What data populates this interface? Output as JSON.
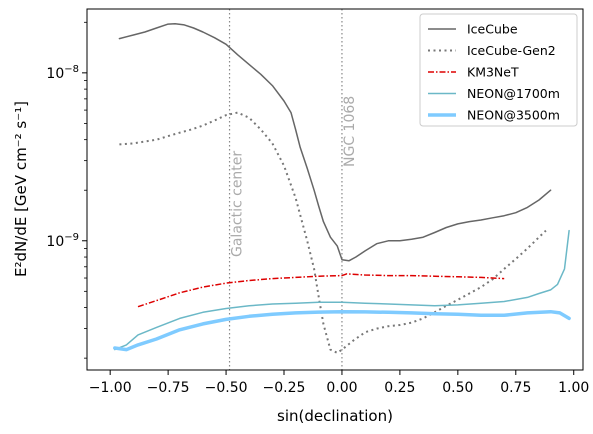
{
  "chart_data": {
    "type": "line",
    "title": "",
    "xlabel": "sin(declination)",
    "ylabel": "E²dN/dE  [GeV cm⁻² s⁻¹]",
    "xlim": [
      -1.1,
      1.04
    ],
    "ylim": [
      1.7e-10,
      2.4e-08
    ],
    "yscale": "log",
    "xticks": [
      -1.0,
      -0.75,
      -0.5,
      -0.25,
      0.0,
      0.25,
      0.5,
      0.75,
      1.0
    ],
    "xtick_labels": [
      "−1.00",
      "−0.75",
      "−0.50",
      "−0.25",
      "0.00",
      "0.25",
      "0.50",
      "0.75",
      "1.00"
    ],
    "yticks": [
      1e-09,
      1e-08
    ],
    "legend_position": "top-right",
    "grid": false,
    "annotations": [
      {
        "text": "Galactic center",
        "x": -0.485
      },
      {
        "text": "NGC 1068",
        "x": 0.0
      }
    ],
    "series": [
      {
        "name": "IceCube",
        "color": "#666666",
        "style": "solid",
        "width": 1.5,
        "x": [
          -0.96,
          -0.9,
          -0.85,
          -0.8,
          -0.75,
          -0.72,
          -0.68,
          -0.64,
          -0.6,
          -0.55,
          -0.5,
          -0.45,
          -0.4,
          -0.35,
          -0.3,
          -0.25,
          -0.22,
          -0.2,
          -0.18,
          -0.15,
          -0.12,
          -0.1,
          -0.08,
          -0.05,
          -0.02,
          0.0,
          0.03,
          0.06,
          0.1,
          0.15,
          0.2,
          0.25,
          0.3,
          0.35,
          0.4,
          0.45,
          0.5,
          0.55,
          0.6,
          0.65,
          0.7,
          0.75,
          0.8,
          0.85,
          0.9
        ],
        "y": [
          1.6e-08,
          1.68e-08,
          1.75e-08,
          1.85e-08,
          1.95e-08,
          1.96e-08,
          1.93e-08,
          1.85e-08,
          1.75e-08,
          1.62e-08,
          1.48e-08,
          1.28e-08,
          1.12e-08,
          9.8e-09,
          8.4e-09,
          6.8e-09,
          5.8e-09,
          4.6e-09,
          3.6e-09,
          2.7e-09,
          2e-09,
          1.6e-09,
          1.3e-09,
          1.05e-09,
          9.3e-10,
          7.7e-10,
          7.6e-10,
          8e-10,
          8.7e-10,
          9.6e-10,
          1e-09,
          1e-09,
          1.02e-09,
          1.05e-09,
          1.12e-09,
          1.2e-09,
          1.26e-09,
          1.3e-09,
          1.33e-09,
          1.37e-09,
          1.41e-09,
          1.47e-09,
          1.58e-09,
          1.75e-09,
          2e-09
        ]
      },
      {
        "name": "IceCube-Gen2",
        "color": "#777777",
        "style": "dotted",
        "width": 2,
        "x": [
          -0.96,
          -0.9,
          -0.85,
          -0.8,
          -0.75,
          -0.7,
          -0.65,
          -0.6,
          -0.55,
          -0.5,
          -0.45,
          -0.4,
          -0.35,
          -0.3,
          -0.25,
          -0.2,
          -0.15,
          -0.12,
          -0.1,
          -0.08,
          -0.05,
          -0.02,
          0.0,
          0.05,
          0.1,
          0.15,
          0.2,
          0.25,
          0.3,
          0.35,
          0.4,
          0.45,
          0.5,
          0.55,
          0.6,
          0.65,
          0.7,
          0.75,
          0.8,
          0.85,
          0.88
        ],
        "y": [
          3.75e-09,
          3.8e-09,
          3.9e-09,
          4e-09,
          4.2e-09,
          4.4e-09,
          4.6e-09,
          4.85e-09,
          5.2e-09,
          5.6e-09,
          5.8e-09,
          5.4e-09,
          4.6e-09,
          3.8e-09,
          2.8e-09,
          1.8e-09,
          1e-09,
          6.8e-10,
          4.6e-10,
          3.2e-10,
          2.25e-10,
          2.15e-10,
          2.25e-10,
          2.55e-10,
          2.85e-10,
          3e-10,
          3.1e-10,
          3.15e-10,
          3.25e-10,
          3.45e-10,
          3.75e-10,
          4.1e-10,
          4.45e-10,
          4.85e-10,
          5.3e-10,
          5.9e-10,
          6.8e-10,
          7.8e-10,
          9e-10,
          1.05e-09,
          1.15e-09
        ]
      },
      {
        "name": "KM3NeT",
        "color": "#dd0000",
        "style": "dashdot",
        "width": 1.5,
        "x": [
          -0.88,
          -0.8,
          -0.7,
          -0.6,
          -0.5,
          -0.4,
          -0.3,
          -0.2,
          -0.1,
          0.0,
          0.02,
          0.1,
          0.2,
          0.3,
          0.4,
          0.5,
          0.6,
          0.7
        ],
        "y": [
          4.05e-10,
          4.4e-10,
          4.9e-10,
          5.3e-10,
          5.6e-10,
          5.8e-10,
          5.95e-10,
          6.05e-10,
          6.15e-10,
          6.2e-10,
          6.35e-10,
          6.25e-10,
          6.2e-10,
          6.2e-10,
          6.15e-10,
          6.1e-10,
          6.05e-10,
          5.95e-10
        ]
      },
      {
        "name": "NEON@1700m",
        "color": "#6bb8c7",
        "style": "solid",
        "width": 1.5,
        "x": [
          -0.98,
          -0.93,
          -0.88,
          -0.8,
          -0.7,
          -0.6,
          -0.5,
          -0.4,
          -0.3,
          -0.2,
          -0.1,
          0.0,
          0.1,
          0.2,
          0.3,
          0.4,
          0.5,
          0.6,
          0.7,
          0.8,
          0.85,
          0.9,
          0.93,
          0.96,
          0.98
        ],
        "y": [
          2.25e-10,
          2.4e-10,
          2.75e-10,
          3.05e-10,
          3.45e-10,
          3.75e-10,
          3.95e-10,
          4.1e-10,
          4.2e-10,
          4.25e-10,
          4.3e-10,
          4.3e-10,
          4.25e-10,
          4.2e-10,
          4.15e-10,
          4.1e-10,
          4.15e-10,
          4.25e-10,
          4.35e-10,
          4.6e-10,
          4.85e-10,
          5.1e-10,
          5.5e-10,
          6.8e-10,
          1.15e-09
        ]
      },
      {
        "name": "NEON@3500m",
        "color": "#7fcbff",
        "style": "solid",
        "width": 3.5,
        "x": [
          -0.98,
          -0.93,
          -0.88,
          -0.8,
          -0.7,
          -0.6,
          -0.5,
          -0.4,
          -0.3,
          -0.2,
          -0.1,
          0.0,
          0.1,
          0.2,
          0.3,
          0.4,
          0.5,
          0.6,
          0.7,
          0.8,
          0.9,
          0.94,
          0.98
        ],
        "y": [
          2.3e-10,
          2.25e-10,
          2.4e-10,
          2.6e-10,
          2.95e-10,
          3.2e-10,
          3.4e-10,
          3.55e-10,
          3.65e-10,
          3.72e-10,
          3.76e-10,
          3.78e-10,
          3.77e-10,
          3.75e-10,
          3.72e-10,
          3.68e-10,
          3.65e-10,
          3.6e-10,
          3.6e-10,
          3.72e-10,
          3.78e-10,
          3.72e-10,
          3.45e-10
        ]
      }
    ]
  }
}
